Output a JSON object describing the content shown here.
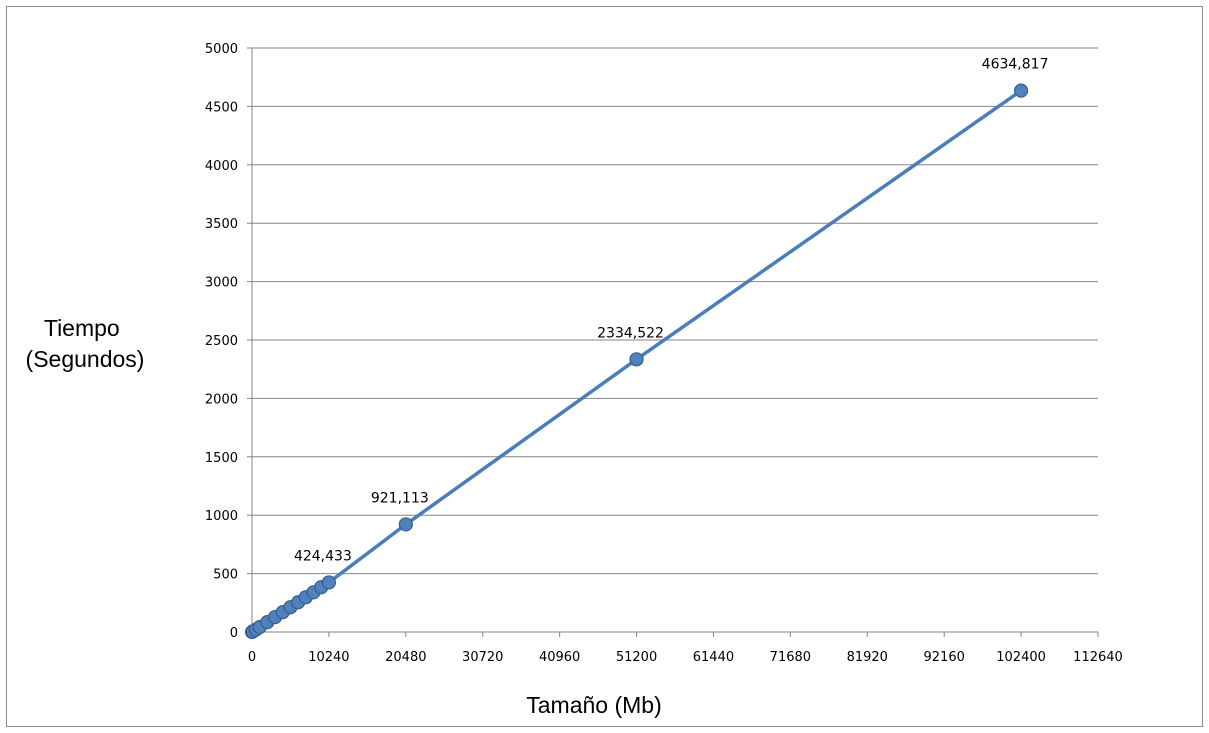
{
  "chart_data": {
    "type": "line",
    "xlabel": "Tamaño (Mb)",
    "ylabel_lines": [
      "Tiempo",
      "(Segundos)"
    ],
    "xlim": [
      0,
      112640
    ],
    "ylim": [
      0,
      5000
    ],
    "x_ticks": [
      0,
      10240,
      20480,
      30720,
      40960,
      51200,
      61440,
      71680,
      81920,
      92160,
      102400,
      112640
    ],
    "y_ticks": [
      0,
      500,
      1000,
      1500,
      2000,
      2500,
      3000,
      3500,
      4000,
      4500,
      5000
    ],
    "grid": "horizontal",
    "legend": "none",
    "colors": {
      "line": "#4a7ebb",
      "marker_fill": "#4f81bd",
      "marker_edge": "#385d8a",
      "grid": "#868686"
    },
    "series": [
      {
        "points": [
          {
            "x": 0,
            "y": 0
          },
          {
            "x": 100,
            "y": 4
          },
          {
            "x": 500,
            "y": 20
          },
          {
            "x": 1024,
            "y": 42
          },
          {
            "x": 2048,
            "y": 85
          },
          {
            "x": 3072,
            "y": 128
          },
          {
            "x": 4096,
            "y": 170
          },
          {
            "x": 5120,
            "y": 212
          },
          {
            "x": 6144,
            "y": 255
          },
          {
            "x": 7168,
            "y": 298
          },
          {
            "x": 8192,
            "y": 340
          },
          {
            "x": 9216,
            "y": 383
          },
          {
            "x": 10240,
            "y": 424.433
          },
          {
            "x": 20480,
            "y": 921.113
          },
          {
            "x": 51200,
            "y": 2334.522
          },
          {
            "x": 102400,
            "y": 4634.817
          }
        ],
        "data_labels": [
          {
            "x": 10240,
            "y": 424.433,
            "text": "424,433"
          },
          {
            "x": 20480,
            "y": 921.113,
            "text": "921,113"
          },
          {
            "x": 51200,
            "y": 2334.522,
            "text": "2334,522"
          },
          {
            "x": 102400,
            "y": 4634.817,
            "text": "4634,817"
          }
        ]
      }
    ]
  }
}
